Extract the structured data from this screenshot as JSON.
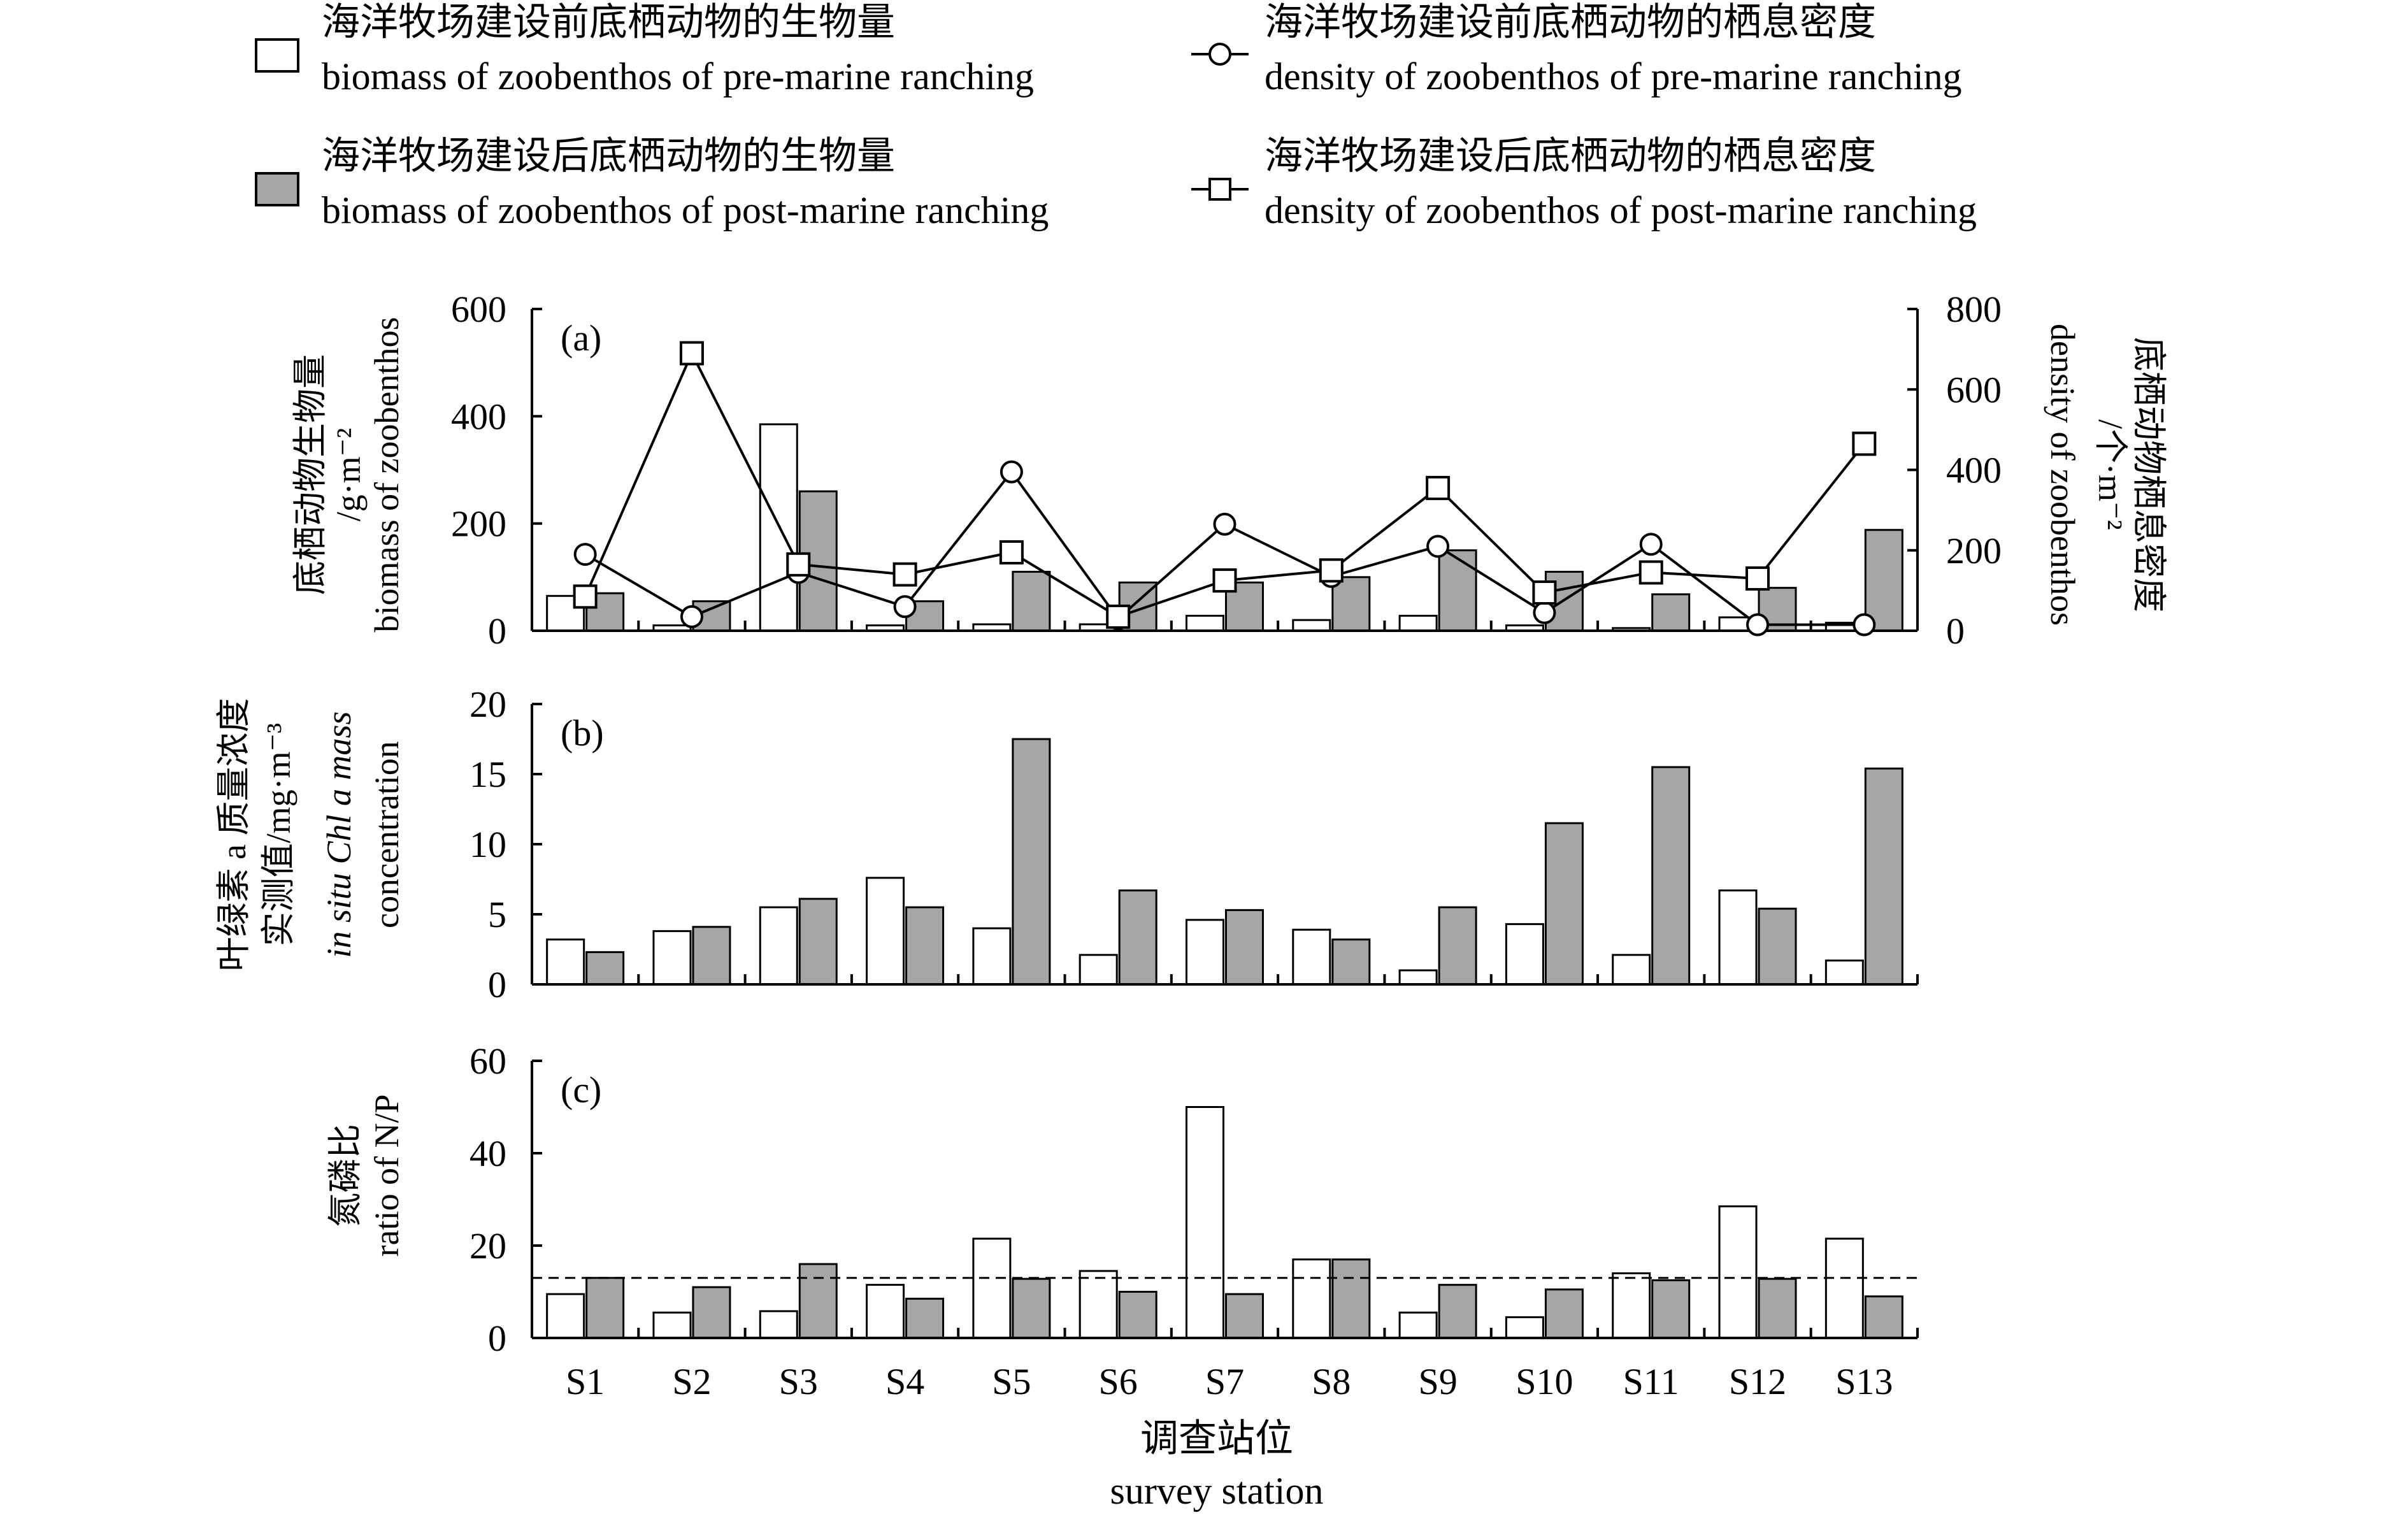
{
  "legend": [
    {
      "zh": "海洋牧场建设前底栖动物的生物量",
      "en": "biomass of zoobenthos of pre-marine ranching",
      "marker": "open-bar"
    },
    {
      "zh": "海洋牧场建设后底栖动物的生物量",
      "en": "biomass of zoobenthos of post-marine ranching",
      "marker": "grey-bar"
    },
    {
      "zh": "海洋牧场建设前底栖动物的栖息密度",
      "en": "density of zoobenthos of pre-marine ranching",
      "marker": "circle-line"
    },
    {
      "zh": "海洋牧场建设后底栖动物的栖息密度",
      "en": "density of zoobenthos of post-marine ranching",
      "marker": "square-line"
    }
  ],
  "colors": {
    "pre_bar": "#ffffff",
    "post_bar": "#a6a6a6",
    "stroke": "#000000"
  },
  "xaxis": {
    "zh": "调查站位",
    "en": "survey station"
  },
  "categories": [
    "S1",
    "S2",
    "S3",
    "S4",
    "S5",
    "S6",
    "S7",
    "S8",
    "S9",
    "S10",
    "S11",
    "S12",
    "S13"
  ],
  "chart_data": [
    {
      "type": "bar",
      "panel": "(a)",
      "ylabel_zh": "底栖动物生物量",
      "ylabel_unit": "/g·m⁻²",
      "ylabel_en": "biomass of zoobenthos",
      "ylim": [
        0,
        600
      ],
      "yticks": [
        0,
        200,
        400,
        600
      ],
      "series": [
        {
          "name": "biomass of zoobenthos of pre-marine ranching",
          "values": [
            65,
            10,
            385,
            10,
            12,
            12,
            28,
            20,
            28,
            10,
            5,
            25,
            15
          ]
        },
        {
          "name": "biomass of zoobenthos of post-marine ranching",
          "values": [
            70,
            55,
            260,
            55,
            110,
            90,
            90,
            100,
            150,
            110,
            68,
            80,
            188
          ]
        }
      ],
      "y2label_zh": "底栖动物栖息密度",
      "y2label_unit": "/个·m⁻²",
      "y2label_en": "density of zoobenthos",
      "y2lim": [
        0,
        800
      ],
      "y2ticks": [
        0,
        200,
        400,
        600,
        800
      ],
      "lines": [
        {
          "name": "density of zoobenthos of pre-marine ranching",
          "marker": "circle",
          "values": [
            190,
            35,
            145,
            60,
            395,
            30,
            265,
            135,
            210,
            45,
            215,
            15,
            15
          ]
        },
        {
          "name": "density of zoobenthos of post-marine ranching",
          "marker": "square",
          "values": [
            85,
            690,
            165,
            140,
            195,
            35,
            125,
            150,
            355,
            95,
            145,
            130,
            465
          ]
        }
      ]
    },
    {
      "type": "bar",
      "panel": "(b)",
      "ylabel_zh": "叶绿素 a 质量浓度",
      "ylabel_zh2": "实测值/mg·m⁻³",
      "ylabel_en": "in situ Chl a mass",
      "ylabel_en2": "concentration",
      "ylim": [
        0,
        20
      ],
      "yticks": [
        0,
        5,
        10,
        15,
        20
      ],
      "series": [
        {
          "name": "pre-marine ranching",
          "values": [
            3.2,
            3.8,
            5.5,
            7.6,
            4.0,
            2.1,
            4.6,
            3.9,
            1.0,
            4.3,
            2.1,
            6.7,
            1.7
          ]
        },
        {
          "name": "post-marine ranching",
          "values": [
            2.3,
            4.1,
            6.1,
            5.5,
            17.5,
            6.7,
            5.3,
            3.2,
            5.5,
            11.5,
            15.5,
            5.4,
            15.4
          ]
        }
      ]
    },
    {
      "type": "bar",
      "panel": "(c)",
      "ylabel_zh": "氮磷比",
      "ylabel_en": "ratio of N/P",
      "ylim": [
        0,
        60
      ],
      "yticks": [
        0,
        20,
        40,
        60
      ],
      "reference_line": 13,
      "series": [
        {
          "name": "pre-marine ranching",
          "values": [
            9.5,
            5.5,
            5.8,
            11.5,
            21.5,
            14.5,
            50.0,
            17.0,
            5.5,
            4.5,
            14.0,
            28.5,
            21.5
          ]
        },
        {
          "name": "post-marine ranching",
          "values": [
            13.0,
            11.0,
            16.0,
            8.5,
            12.8,
            10.0,
            9.5,
            17.0,
            11.5,
            10.5,
            12.5,
            12.8,
            9.0
          ]
        }
      ]
    }
  ]
}
